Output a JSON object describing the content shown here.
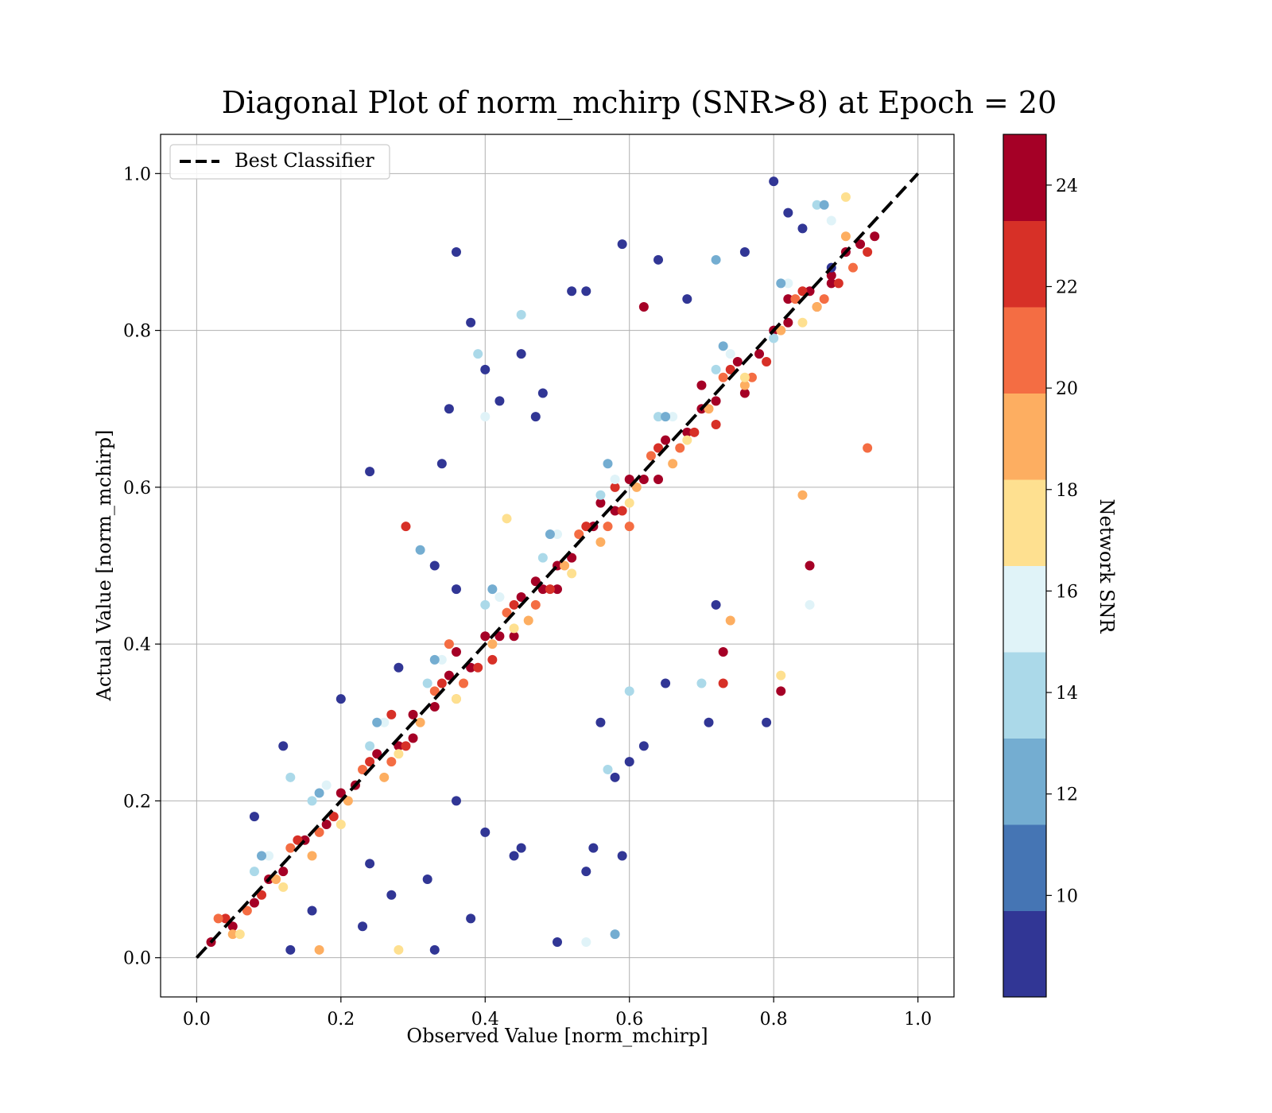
{
  "chart_data": {
    "type": "scatter",
    "title": "Diagonal Plot of norm_mchirp (SNR>8) at Epoch = 20",
    "xlabel": "Observed Value [norm_mchirp]",
    "ylabel": "Actual Value [norm_mchirp]",
    "xlim": [
      -0.05,
      1.05
    ],
    "ylim": [
      -0.05,
      1.05
    ],
    "x_ticks": [
      "0.0",
      "0.2",
      "0.4",
      "0.6",
      "0.8",
      "1.0"
    ],
    "y_ticks": [
      "0.0",
      "0.2",
      "0.4",
      "0.6",
      "0.8",
      "1.0"
    ],
    "grid": true,
    "legend": {
      "placement": "top-left",
      "entries": [
        "Best Classifier"
      ]
    },
    "reference_line": {
      "name": "Best Classifier",
      "style": "dashed",
      "color": "#000000",
      "x": [
        0.0,
        1.0
      ],
      "y": [
        0.0,
        1.0
      ]
    },
    "colorbar": {
      "label": "Network SNR",
      "range": [
        8,
        25
      ],
      "ticks": [
        "10",
        "12",
        "14",
        "16",
        "18",
        "20",
        "22",
        "24"
      ],
      "colors": [
        "#313695",
        "#4575b4",
        "#74add1",
        "#abd9e9",
        "#e0f3f8",
        "#fee090",
        "#fdae61",
        "#f46d43",
        "#d73027",
        "#a50026"
      ]
    },
    "series": [
      {
        "snr_bin": "24+",
        "color": "#a50026",
        "x": [
          0.02,
          0.05,
          0.08,
          0.1,
          0.12,
          0.15,
          0.18,
          0.2,
          0.22,
          0.25,
          0.28,
          0.3,
          0.33,
          0.35,
          0.38,
          0.4,
          0.42,
          0.45,
          0.48,
          0.5,
          0.52,
          0.55,
          0.58,
          0.6,
          0.62,
          0.65,
          0.68,
          0.7,
          0.72,
          0.75,
          0.78,
          0.8,
          0.82,
          0.85,
          0.88,
          0.9,
          0.92,
          0.94,
          0.3,
          0.36,
          0.44,
          0.5,
          0.56,
          0.64,
          0.7,
          0.76,
          0.82,
          0.88,
          0.62,
          0.81,
          0.73,
          0.85,
          0.47
        ],
        "y": [
          0.02,
          0.04,
          0.07,
          0.1,
          0.11,
          0.15,
          0.17,
          0.21,
          0.22,
          0.26,
          0.27,
          0.31,
          0.32,
          0.36,
          0.37,
          0.41,
          0.41,
          0.46,
          0.47,
          0.5,
          0.51,
          0.55,
          0.57,
          0.61,
          0.61,
          0.66,
          0.67,
          0.7,
          0.71,
          0.76,
          0.77,
          0.8,
          0.81,
          0.85,
          0.87,
          0.9,
          0.91,
          0.92,
          0.28,
          0.39,
          0.41,
          0.47,
          0.58,
          0.61,
          0.73,
          0.72,
          0.84,
          0.86,
          0.83,
          0.34,
          0.39,
          0.5,
          0.48
        ]
      },
      {
        "snr_bin": "22-24",
        "color": "#d73027",
        "x": [
          0.04,
          0.09,
          0.14,
          0.19,
          0.24,
          0.29,
          0.34,
          0.39,
          0.44,
          0.49,
          0.54,
          0.59,
          0.64,
          0.69,
          0.74,
          0.79,
          0.84,
          0.89,
          0.93,
          0.27,
          0.41,
          0.58,
          0.72,
          0.86,
          0.73,
          0.29
        ],
        "y": [
          0.05,
          0.08,
          0.15,
          0.18,
          0.25,
          0.27,
          0.35,
          0.37,
          0.45,
          0.47,
          0.55,
          0.57,
          0.65,
          0.67,
          0.75,
          0.76,
          0.85,
          0.86,
          0.9,
          0.31,
          0.38,
          0.6,
          0.68,
          0.83,
          0.35,
          0.55
        ]
      },
      {
        "snr_bin": "20-22",
        "color": "#f46d43",
        "x": [
          0.03,
          0.07,
          0.13,
          0.17,
          0.23,
          0.27,
          0.33,
          0.37,
          0.43,
          0.47,
          0.53,
          0.57,
          0.63,
          0.67,
          0.73,
          0.77,
          0.83,
          0.87,
          0.91,
          0.35,
          0.6,
          0.93
        ],
        "y": [
          0.05,
          0.06,
          0.14,
          0.16,
          0.24,
          0.25,
          0.34,
          0.35,
          0.44,
          0.45,
          0.54,
          0.55,
          0.64,
          0.65,
          0.74,
          0.74,
          0.84,
          0.84,
          0.88,
          0.4,
          0.55,
          0.65
        ]
      },
      {
        "snr_bin": "18-20",
        "color": "#fdae61",
        "x": [
          0.05,
          0.11,
          0.16,
          0.21,
          0.26,
          0.31,
          0.36,
          0.41,
          0.46,
          0.51,
          0.56,
          0.61,
          0.66,
          0.71,
          0.76,
          0.81,
          0.86,
          0.9,
          0.17,
          0.74,
          0.84
        ],
        "y": [
          0.03,
          0.1,
          0.13,
          0.2,
          0.23,
          0.3,
          0.33,
          0.4,
          0.43,
          0.5,
          0.53,
          0.6,
          0.63,
          0.7,
          0.73,
          0.8,
          0.83,
          0.92,
          0.01,
          0.43,
          0.59
        ]
      },
      {
        "snr_bin": "16-18",
        "color": "#fee090",
        "x": [
          0.06,
          0.12,
          0.2,
          0.28,
          0.36,
          0.44,
          0.52,
          0.6,
          0.68,
          0.76,
          0.84,
          0.9,
          0.81,
          0.43,
          0.28
        ],
        "y": [
          0.03,
          0.09,
          0.17,
          0.26,
          0.33,
          0.42,
          0.49,
          0.58,
          0.66,
          0.74,
          0.81,
          0.97,
          0.36,
          0.56,
          0.01
        ]
      },
      {
        "snr_bin": "14-16",
        "color": "#e0f3f8",
        "x": [
          0.1,
          0.18,
          0.26,
          0.34,
          0.42,
          0.5,
          0.58,
          0.66,
          0.74,
          0.82,
          0.88,
          0.85,
          0.4,
          0.54
        ],
        "y": [
          0.13,
          0.22,
          0.3,
          0.38,
          0.46,
          0.54,
          0.61,
          0.69,
          0.77,
          0.86,
          0.94,
          0.45,
          0.69,
          0.02
        ]
      },
      {
        "snr_bin": "12-14",
        "color": "#abd9e9",
        "x": [
          0.08,
          0.16,
          0.24,
          0.32,
          0.4,
          0.48,
          0.56,
          0.64,
          0.72,
          0.8,
          0.86,
          0.13,
          0.39,
          0.45,
          0.6,
          0.7,
          0.57
        ],
        "y": [
          0.11,
          0.2,
          0.27,
          0.35,
          0.45,
          0.51,
          0.59,
          0.69,
          0.75,
          0.79,
          0.96,
          0.23,
          0.77,
          0.82,
          0.34,
          0.35,
          0.24
        ]
      },
      {
        "snr_bin": "10-12",
        "color": "#74add1",
        "x": [
          0.09,
          0.17,
          0.25,
          0.33,
          0.41,
          0.49,
          0.57,
          0.65,
          0.73,
          0.81,
          0.87,
          0.31,
          0.72,
          0.58
        ],
        "y": [
          0.13,
          0.21,
          0.3,
          0.38,
          0.47,
          0.54,
          0.63,
          0.69,
          0.78,
          0.86,
          0.96,
          0.52,
          0.89,
          0.03
        ]
      },
      {
        "snr_bin": "8-10",
        "color": "#313695",
        "x": [
          0.08,
          0.12,
          0.16,
          0.2,
          0.24,
          0.28,
          0.32,
          0.36,
          0.38,
          0.4,
          0.44,
          0.48,
          0.52,
          0.56,
          0.6,
          0.64,
          0.68,
          0.72,
          0.76,
          0.8,
          0.84,
          0.88,
          0.24,
          0.36,
          0.38,
          0.45,
          0.54,
          0.58,
          0.33,
          0.5,
          0.59,
          0.42,
          0.45,
          0.55,
          0.71,
          0.65,
          0.27,
          0.34,
          0.47,
          0.35,
          0.33,
          0.54,
          0.4,
          0.62,
          0.82,
          0.79,
          0.59,
          0.36,
          0.23,
          0.13
        ],
        "y": [
          0.18,
          0.27,
          0.06,
          0.33,
          0.12,
          0.37,
          0.1,
          0.47,
          0.05,
          0.75,
          0.13,
          0.72,
          0.85,
          0.3,
          0.25,
          0.89,
          0.84,
          0.45,
          0.9,
          0.99,
          0.93,
          0.88,
          0.62,
          0.9,
          0.81,
          0.77,
          0.11,
          0.23,
          0.01,
          0.02,
          0.91,
          0.71,
          0.14,
          0.14,
          0.3,
          0.35,
          0.08,
          0.63,
          0.69,
          0.7,
          0.5,
          0.85,
          0.16,
          0.27,
          0.95,
          0.3,
          0.13,
          0.2,
          0.04,
          0.01
        ]
      }
    ]
  }
}
